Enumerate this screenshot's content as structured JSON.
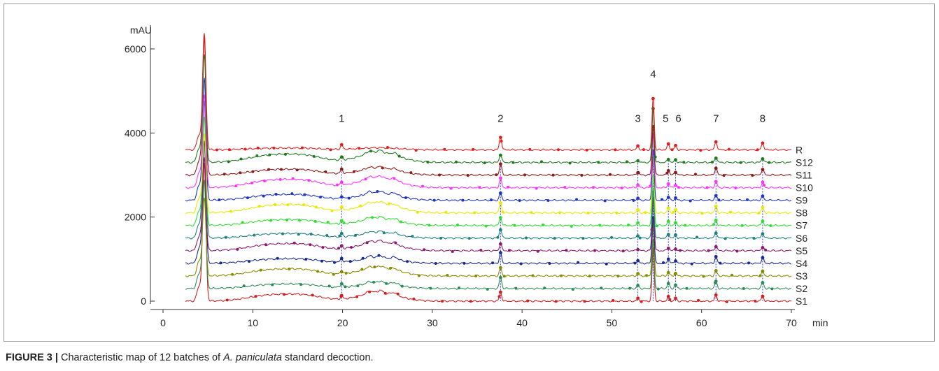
{
  "figure": {
    "label": "FIGURE 3 |",
    "caption_before": " Characteristic map of 12 batches of ",
    "caption_species": "A. paniculata",
    "caption_after": " standard decoction."
  },
  "chart_data": {
    "type": "line",
    "title": "",
    "xlabel": "min",
    "ylabel": "mAU",
    "xlim": [
      0,
      70
    ],
    "ylim": [
      0,
      6500
    ],
    "x_ticks": [
      0,
      10,
      20,
      30,
      40,
      50,
      60,
      70
    ],
    "y_ticks": [
      0,
      2000,
      4000,
      6000
    ],
    "grid": false,
    "legend": "right-edge labels",
    "series": [
      {
        "name": "R",
        "color": "#e02020",
        "baseline": 3600
      },
      {
        "name": "S12",
        "color": "#1f7a1f",
        "baseline": 3300
      },
      {
        "name": "S11",
        "color": "#8b1a1a",
        "baseline": 3000
      },
      {
        "name": "S10",
        "color": "#ff33ff",
        "baseline": 2700
      },
      {
        "name": "S9",
        "color": "#1f35c8",
        "baseline": 2400
      },
      {
        "name": "S8",
        "color": "#e8e800",
        "baseline": 2100
      },
      {
        "name": "S7",
        "color": "#33dd33",
        "baseline": 1800
      },
      {
        "name": "S6",
        "color": "#1f8080",
        "baseline": 1500
      },
      {
        "name": "S5",
        "color": "#8b1a70",
        "baseline": 1200
      },
      {
        "name": "S4",
        "color": "#1a2a8b",
        "baseline": 900
      },
      {
        "name": "S3",
        "color": "#8b8b00",
        "baseline": 600
      },
      {
        "name": "S2",
        "color": "#2e8b57",
        "baseline": 300
      },
      {
        "name": "S1",
        "color": "#d02020",
        "baseline": 0
      }
    ],
    "peaks": [
      {
        "label": "1",
        "x": 19.9,
        "height": 100
      },
      {
        "label": "2",
        "x": 37.6,
        "height": 300
      },
      {
        "label": "3",
        "x": 52.9,
        "height": 80
      },
      {
        "label": "4",
        "x": 54.6,
        "height": 1220
      },
      {
        "label": "5",
        "x": 56.3,
        "height": 130
      },
      {
        "label": "6",
        "x": 57.1,
        "height": 90
      },
      {
        "label": "7",
        "x": 61.6,
        "height": 190
      },
      {
        "label": "8",
        "x": 66.8,
        "height": 160
      }
    ],
    "solvent_peak": {
      "x": 4.6,
      "height_R": 2700,
      "height_max": 6000
    }
  }
}
